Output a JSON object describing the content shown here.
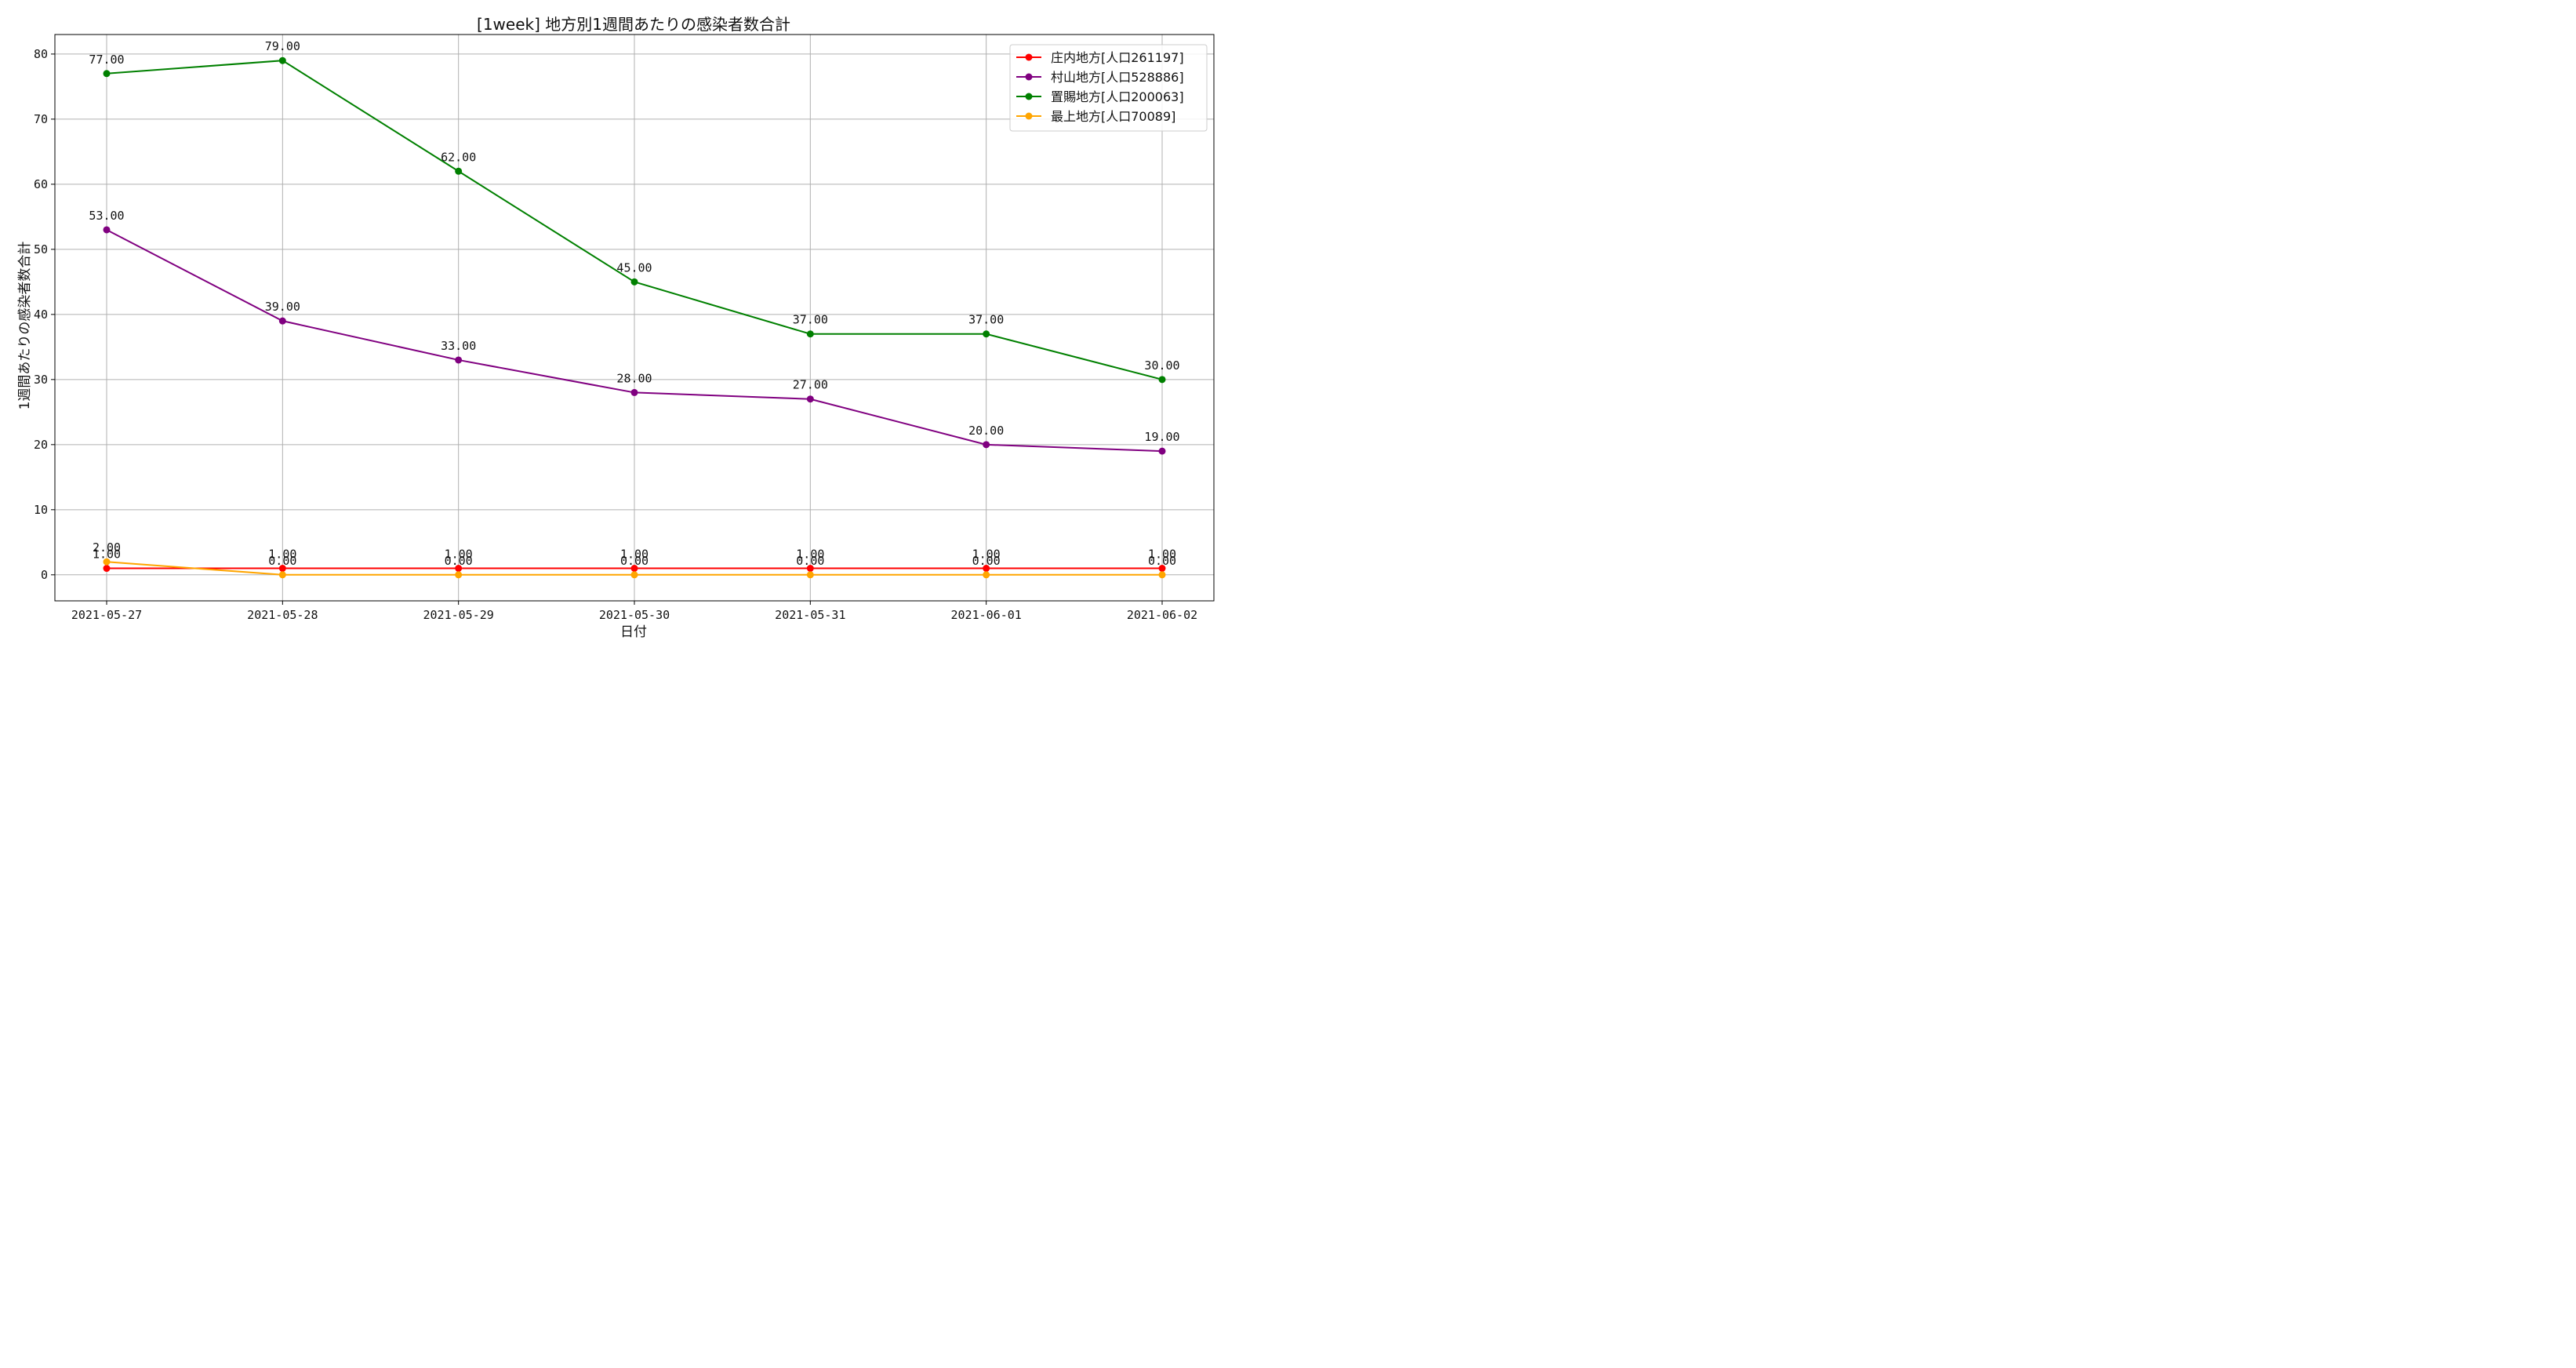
{
  "chart_data": {
    "type": "line",
    "title": "[1week] 地方別1週間あたりの感染者数合計",
    "xlabel": "日付",
    "ylabel": "1週間あたりの感染者数合計",
    "categories": [
      "2021-05-27",
      "2021-05-28",
      "2021-05-29",
      "2021-05-30",
      "2021-05-31",
      "2021-06-01",
      "2021-06-02"
    ],
    "y_ticks": [
      "0",
      "10",
      "20",
      "30",
      "40",
      "50",
      "60",
      "70",
      "80"
    ],
    "ylim": [
      -4,
      83
    ],
    "grid": true,
    "legend_position": "top-right",
    "series": [
      {
        "name": "庄内地方[人口261197]",
        "color": "#ff0000",
        "values": [
          1,
          1,
          1,
          1,
          1,
          1,
          1
        ],
        "labels": [
          "1.00",
          "1.00",
          "1.00",
          "1.00",
          "1.00",
          "1.00",
          "1.00"
        ]
      },
      {
        "name": "村山地方[人口528886]",
        "color": "#800080",
        "values": [
          53,
          39,
          33,
          28,
          27,
          20,
          19
        ],
        "labels": [
          "53.00",
          "39.00",
          "33.00",
          "28.00",
          "27.00",
          "20.00",
          "19.00"
        ]
      },
      {
        "name": "置賜地方[人口200063]",
        "color": "#008000",
        "values": [
          77,
          79,
          62,
          45,
          37,
          37,
          30
        ],
        "labels": [
          "77.00",
          "79.00",
          "62.00",
          "45.00",
          "37.00",
          "37.00",
          "30.00"
        ]
      },
      {
        "name": "最上地方[人口70089]",
        "color": "#ffa500",
        "values": [
          2,
          0,
          0,
          0,
          0,
          0,
          0
        ],
        "labels": [
          "2.00",
          "0.00",
          "0.00",
          "0.00",
          "0.00",
          "0.00",
          "0.00"
        ]
      }
    ]
  }
}
